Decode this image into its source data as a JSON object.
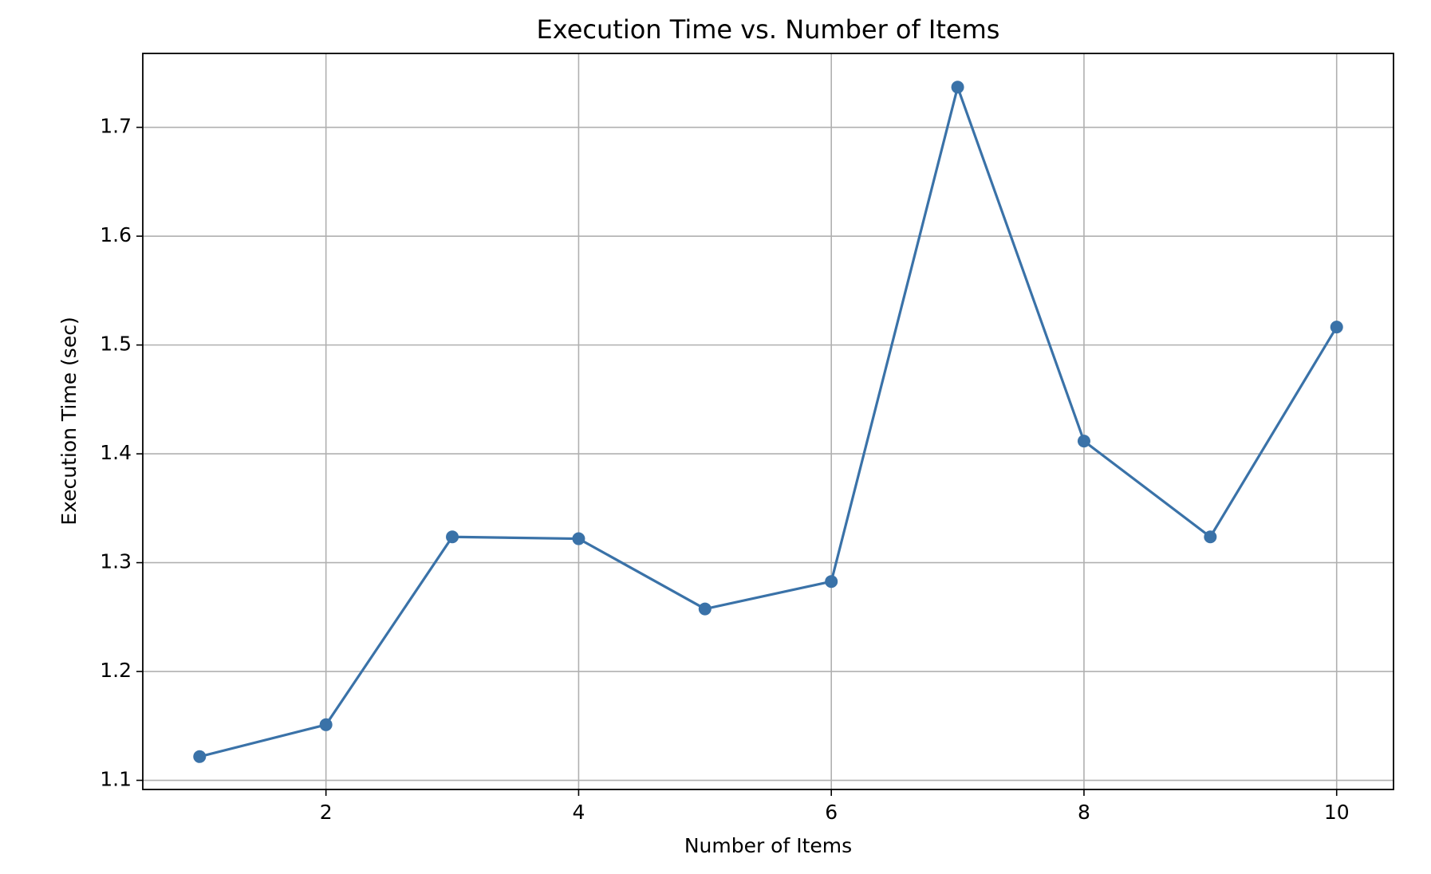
{
  "chart_data": {
    "type": "line",
    "title": "Execution Time vs. Number of Items",
    "xlabel": "Number of Items",
    "ylabel": "Execution Time (sec)",
    "x": [
      1,
      2,
      3,
      4,
      5,
      6,
      7,
      8,
      9,
      10
    ],
    "series": [
      {
        "name": "Execution Time",
        "color": "#3a72a8",
        "values": [
          1.1218,
          1.1511,
          1.3237,
          1.322,
          1.2575,
          1.2827,
          1.7369,
          1.4117,
          1.3237,
          1.5165
        ]
      }
    ],
    "xlim": [
      0.55,
      10.45
    ],
    "xticks": [
      2,
      4,
      6,
      8,
      10
    ],
    "ylim": [
      1.0916,
      1.7679
    ],
    "yticks": [
      1.1,
      1.2,
      1.3,
      1.4,
      1.5,
      1.6,
      1.7
    ],
    "grid": true,
    "legend": false
  }
}
